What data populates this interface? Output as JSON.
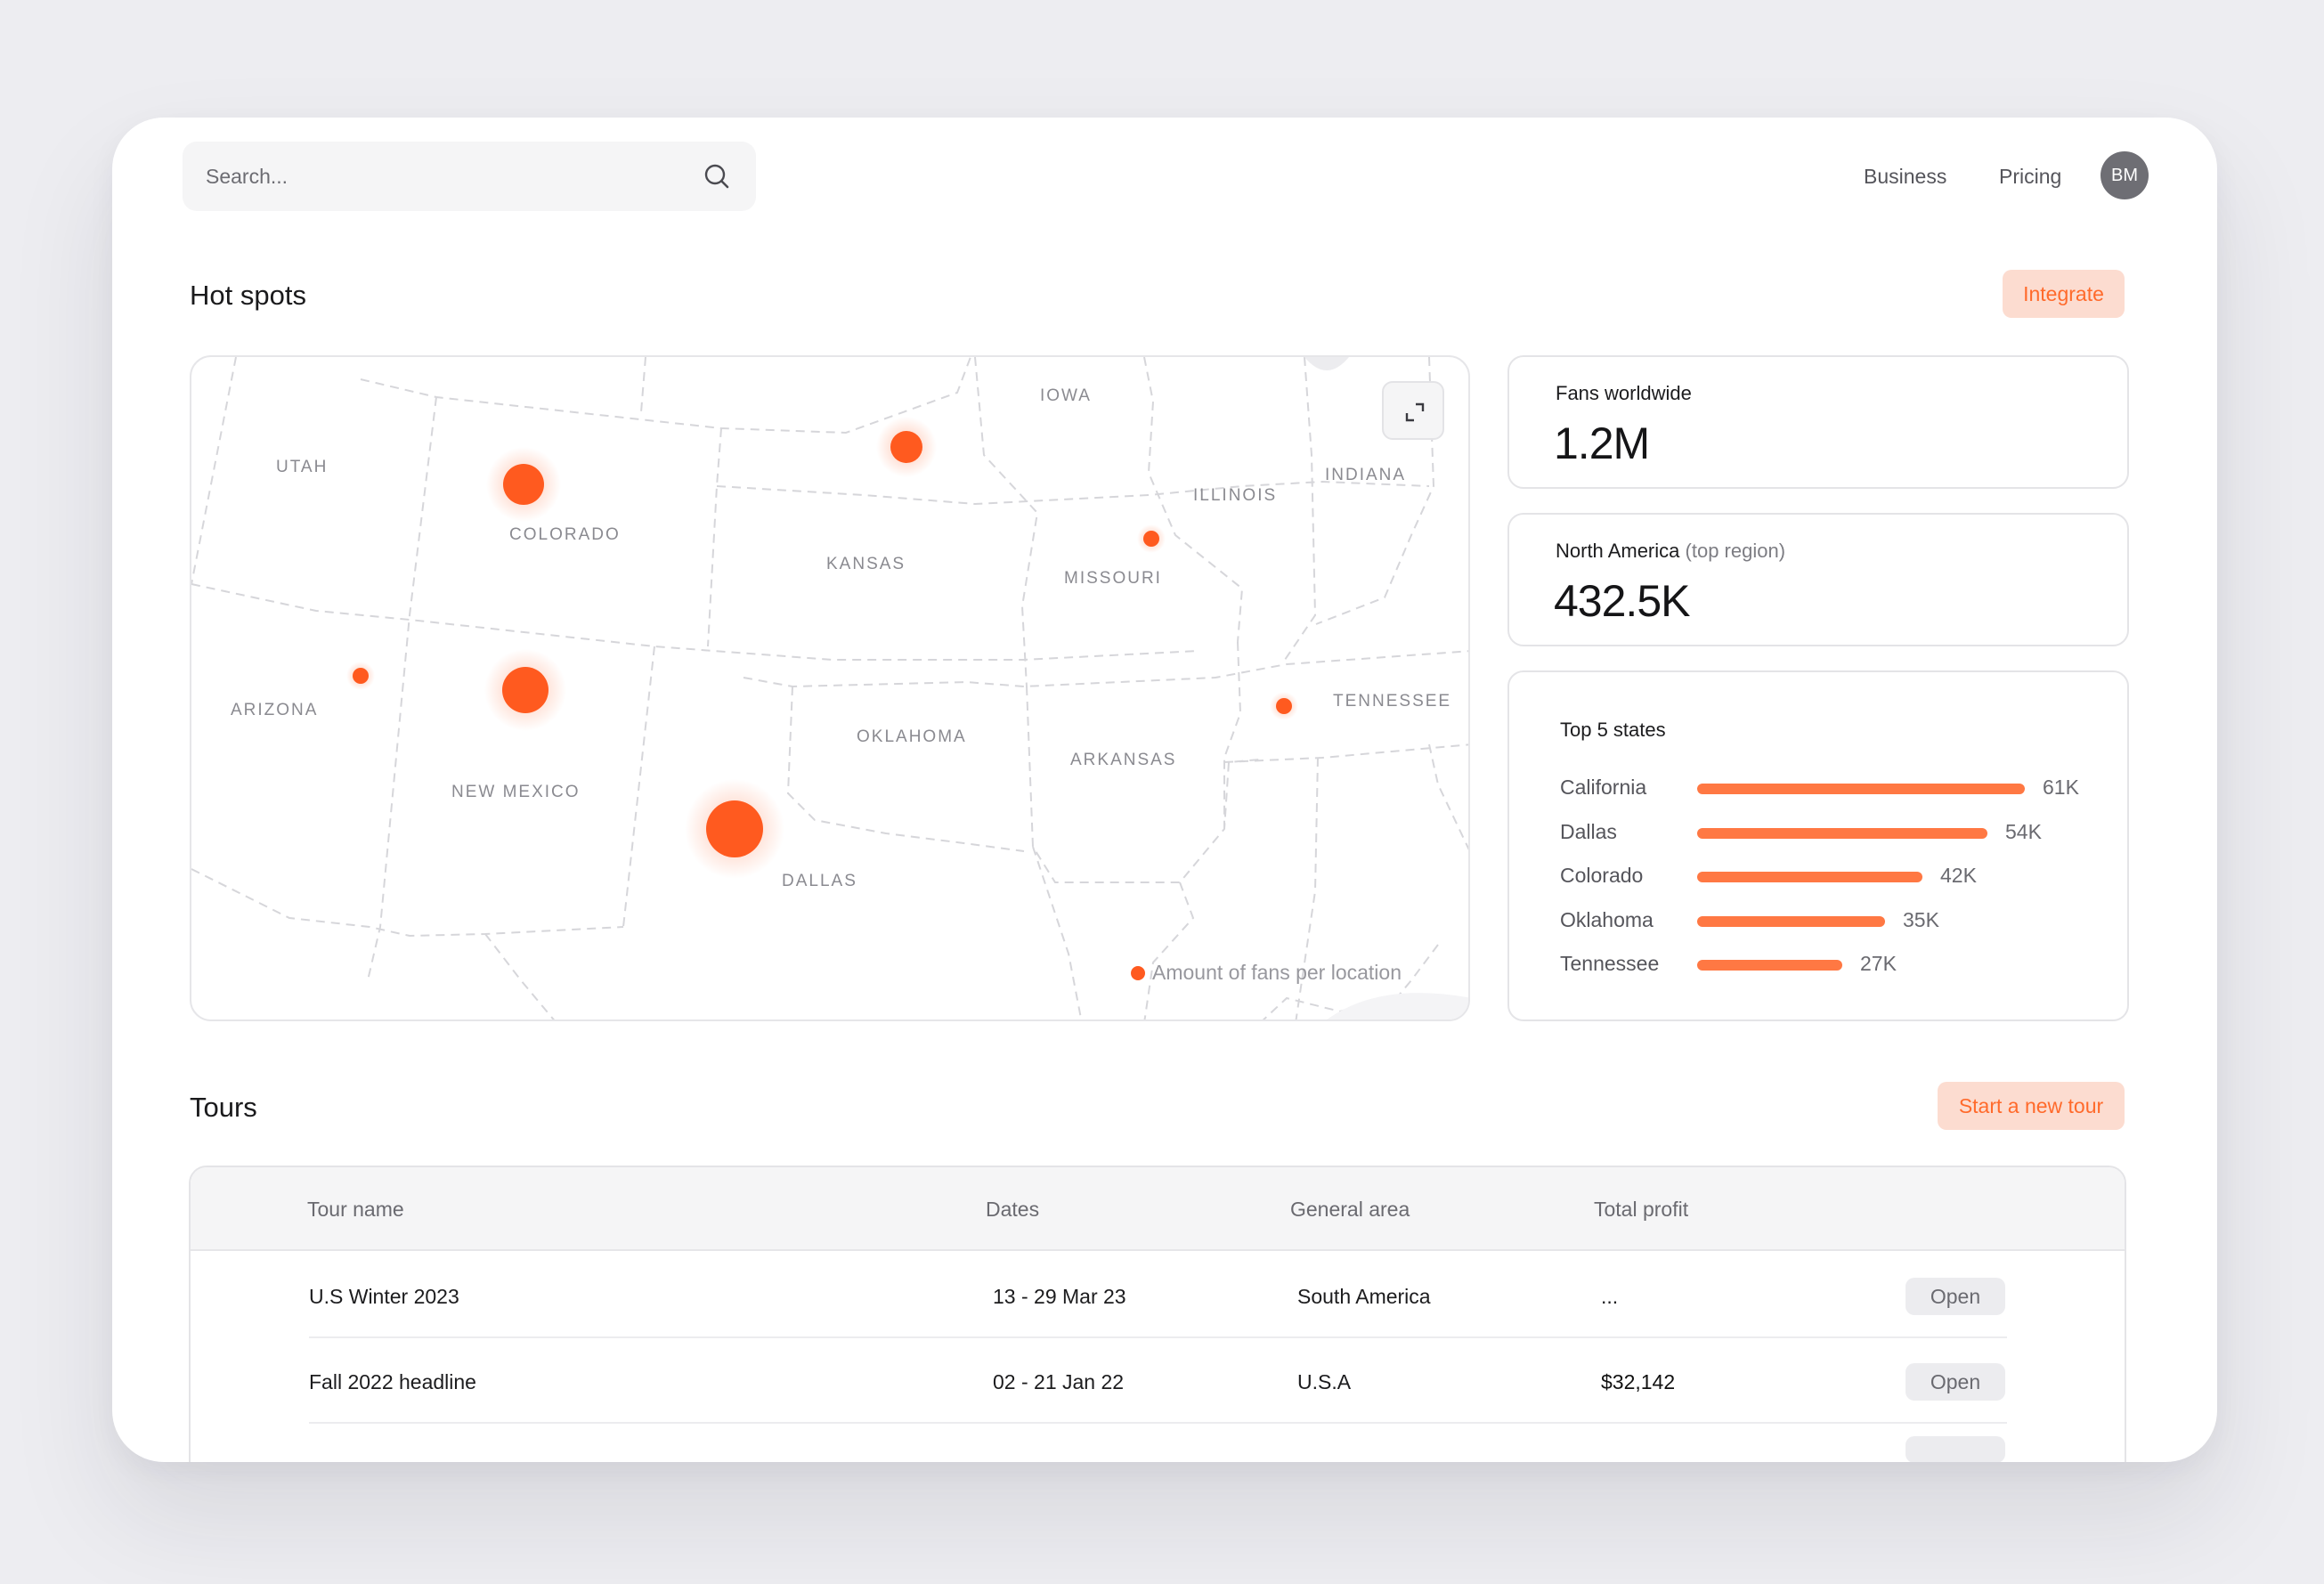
{
  "search": {
    "placeholder": "Search..."
  },
  "nav": {
    "business": "Business",
    "pricing": "Pricing",
    "avatar_initials": "BM"
  },
  "hotspots": {
    "title": "Hot spots",
    "integrate_label": "Integrate",
    "states": {
      "utah": "UTAH",
      "colorado": "COLORADO",
      "kansas": "KANSAS",
      "iowa": "IOWA",
      "illinois": "ILLINOIS",
      "indiana": "INDIANA",
      "missouri": "MISSOURI",
      "arizona": "ARIZONA",
      "new_mexico": "NEW MEXICO",
      "oklahoma": "OKLAHOMA",
      "arkansas": "ARKANSAS",
      "tennessee": "TENNESSEE",
      "dallas": "DALLAS"
    },
    "legend": "Amount of fans per location",
    "accent_color": "#ff5a1f"
  },
  "stats": {
    "fans_worldwide": {
      "label": "Fans worldwide",
      "value": "1.2M"
    },
    "top_region": {
      "label": "North America",
      "label_muted": "(top region)",
      "value": "432.5K"
    },
    "top_states": {
      "title": "Top 5 states",
      "items": [
        {
          "name": "California",
          "value": 61,
          "display": "61K"
        },
        {
          "name": "Dallas",
          "value": 54,
          "display": "54K"
        },
        {
          "name": "Colorado",
          "value": 42,
          "display": "42K"
        },
        {
          "name": "Oklahoma",
          "value": 35,
          "display": "35K"
        },
        {
          "name": "Tennessee",
          "value": 27,
          "display": "27K"
        }
      ]
    }
  },
  "tours": {
    "title": "Tours",
    "new_tour_label": "Start a new tour",
    "columns": [
      "Tour name",
      "Dates",
      "General area",
      "Total profit"
    ],
    "rows": [
      {
        "name": "U.S Winter 2023",
        "dates": "13 - 29 Mar 23",
        "area": "South America",
        "profit": "...",
        "action": "Open"
      },
      {
        "name": "Fall 2022 headline",
        "dates": "02 - 21 Jan 22",
        "area": "U.S.A",
        "profit": "$32,142",
        "action": "Open"
      }
    ]
  }
}
